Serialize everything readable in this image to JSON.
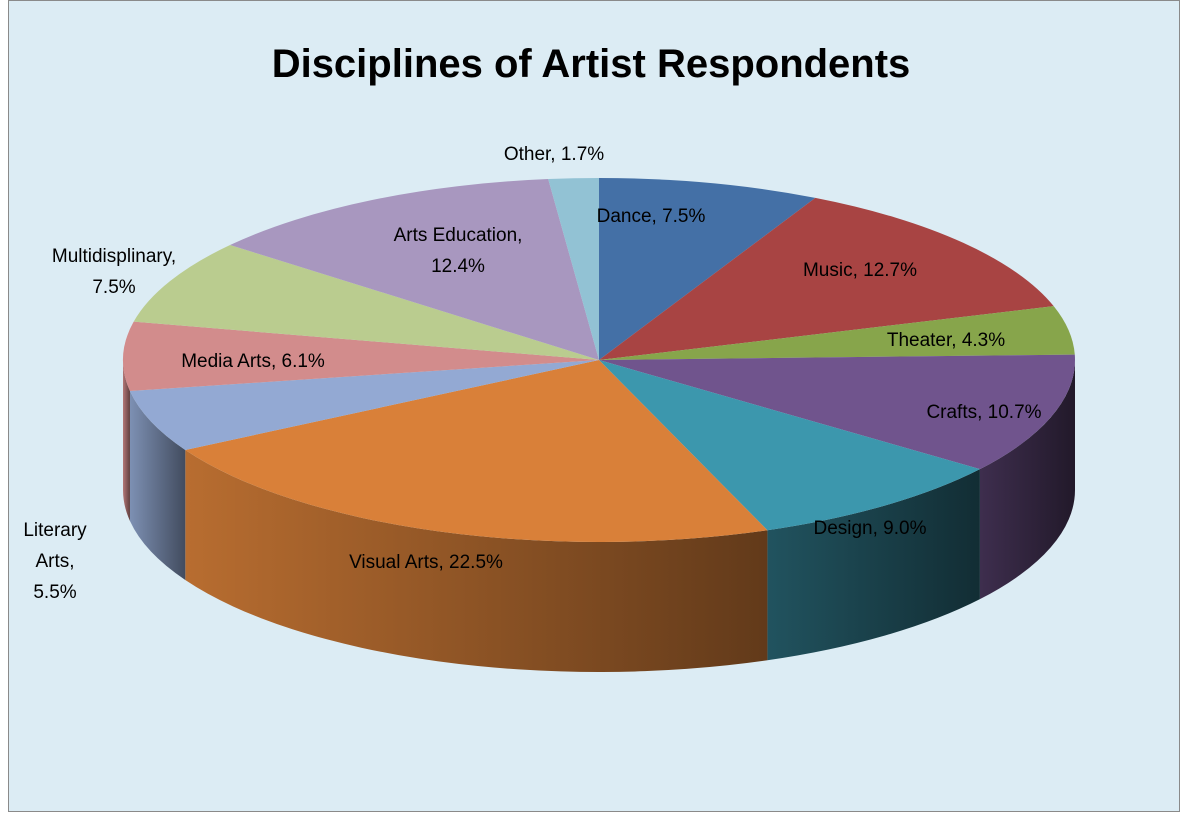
{
  "chart_data": {
    "type": "pie",
    "title": "Disciplines of Artist Respondents",
    "style": "3d",
    "slices": [
      {
        "label": "Dance",
        "value": 7.5,
        "value_label": "7.5%",
        "color": "#4470a6",
        "label_lines": [
          "Dance, 7.5%"
        ]
      },
      {
        "label": "Music",
        "value": 12.7,
        "value_label": "12.7%",
        "color": "#a84443",
        "label_lines": [
          "Music, 12.7%"
        ]
      },
      {
        "label": "Theater",
        "value": 4.3,
        "value_label": "4.3%",
        "color": "#87a54b",
        "label_lines": [
          "Theater, 4.3%"
        ]
      },
      {
        "label": "Crafts",
        "value": 10.7,
        "value_label": "10.7%",
        "color": "#70548d",
        "label_lines": [
          "Crafts, 10.7%"
        ]
      },
      {
        "label": "Design",
        "value": 9.0,
        "value_label": "9.0%",
        "color": "#3c97ad",
        "label_lines": [
          "Design, 9.0%"
        ]
      },
      {
        "label": "Visual Arts",
        "value": 22.5,
        "value_label": "22.5%",
        "color": "#d98039",
        "label_lines": [
          "Visual Arts, 22.5%"
        ]
      },
      {
        "label": "Literary Arts",
        "value": 5.5,
        "value_label": "5.5%",
        "color": "#93a9d3",
        "label_lines": [
          "Literary",
          "Arts,",
          "5.5%"
        ]
      },
      {
        "label": "Media Arts",
        "value": 6.1,
        "value_label": "6.1%",
        "color": "#d28c8c",
        "label_lines": [
          "Media Arts, 6.1%"
        ]
      },
      {
        "label": "Multidisplinary",
        "value": 7.5,
        "value_label": "7.5%",
        "color": "#bacc8f",
        "label_lines": [
          "Multidisplinary,",
          "7.5%"
        ]
      },
      {
        "label": "Arts Education",
        "value": 12.4,
        "value_label": "12.4%",
        "color": "#a897bf",
        "label_lines": [
          "Arts Education,",
          "12.4%"
        ]
      },
      {
        "label": "Other",
        "value": 1.7,
        "value_label": "1.7%",
        "color": "#92c2d4",
        "label_lines": [
          "Other, 1.7%"
        ]
      }
    ],
    "start_angle_deg": 0,
    "direction": "clockwise",
    "legend": "none"
  }
}
